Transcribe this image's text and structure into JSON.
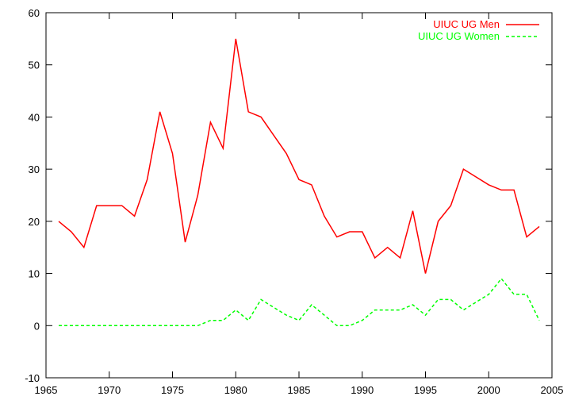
{
  "chart_data": {
    "type": "line",
    "title": "",
    "xlabel": "",
    "ylabel": "",
    "xlim": [
      1965,
      2005
    ],
    "ylim": [
      -10,
      60
    ],
    "x_ticks": [
      1965,
      1970,
      1975,
      1980,
      1985,
      1990,
      1995,
      2000,
      2005
    ],
    "y_ticks": [
      -10,
      0,
      10,
      20,
      30,
      40,
      50,
      60
    ],
    "grid": false,
    "legend_position": "top-right",
    "series": [
      {
        "name": "UIUC UG Men",
        "color": "#ff0000",
        "dash": "solid",
        "x": [
          1966,
          1967,
          1968,
          1969,
          1970,
          1971,
          1972,
          1973,
          1974,
          1975,
          1976,
          1977,
          1978,
          1979,
          1980,
          1981,
          1982,
          1983,
          1984,
          1985,
          1986,
          1987,
          1988,
          1989,
          1990,
          1991,
          1992,
          1993,
          1994,
          1995,
          1996,
          1997,
          1998,
          1999,
          2000,
          2001,
          2002,
          2003,
          2004
        ],
        "values": [
          20,
          18,
          15,
          23,
          23,
          23,
          21,
          28,
          41,
          33,
          16,
          25,
          39,
          34,
          55,
          41,
          40,
          36.5,
          33,
          28,
          27,
          21,
          17,
          18,
          18,
          13,
          15,
          13,
          22,
          10,
          20,
          23,
          30,
          28.5,
          27,
          26,
          26,
          17,
          19
        ]
      },
      {
        "name": "UIUC UG Women",
        "color": "#00ff00",
        "dash": "dashed",
        "x": [
          1966,
          1967,
          1968,
          1969,
          1970,
          1971,
          1972,
          1973,
          1974,
          1975,
          1976,
          1977,
          1978,
          1979,
          1980,
          1981,
          1982,
          1983,
          1984,
          1985,
          1986,
          1987,
          1988,
          1989,
          1990,
          1991,
          1992,
          1993,
          1994,
          1995,
          1996,
          1997,
          1998,
          1999,
          2000,
          2001,
          2002,
          2003,
          2004
        ],
        "values": [
          0,
          0,
          0,
          0,
          0,
          0,
          0,
          0,
          0,
          0,
          0,
          0,
          1,
          1,
          3,
          1,
          5,
          3.5,
          2,
          1,
          4,
          2,
          0,
          0,
          1,
          3,
          3,
          3,
          4,
          2,
          5,
          5,
          3,
          4.5,
          6,
          9,
          6,
          6,
          1
        ]
      }
    ]
  }
}
